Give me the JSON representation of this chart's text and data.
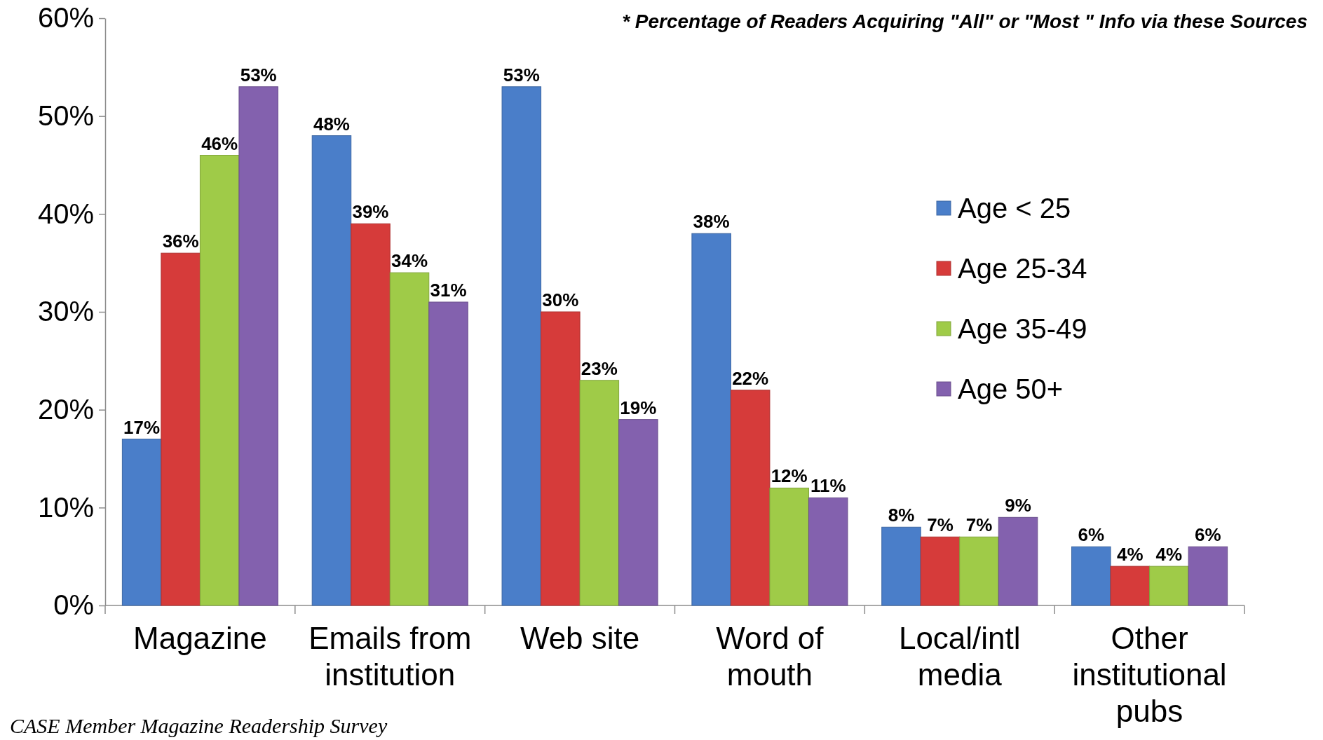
{
  "chart_data": {
    "type": "bar",
    "categories": [
      "Magazine",
      "Emails from institution",
      "Web site",
      "Word of mouth",
      "Local/intl media",
      "Other institutional pubs"
    ],
    "series": [
      {
        "name": "Age < 25",
        "color": "#4a7ec9",
        "values": [
          17,
          48,
          53,
          38,
          8,
          6
        ],
        "value_labels": [
          "17%",
          "48%",
          "53%",
          "38%",
          "8%",
          "6%"
        ]
      },
      {
        "name": "Age 25-34",
        "color": "#d63b3a",
        "values": [
          36,
          39,
          30,
          22,
          7,
          4
        ],
        "value_labels": [
          "36%",
          "39%",
          "30%",
          "22%",
          "7%",
          "4%"
        ]
      },
      {
        "name": "Age 35-49",
        "color": "#9fcb48",
        "values": [
          46,
          34,
          23,
          12,
          7,
          4
        ],
        "value_labels": [
          "46%",
          "34%",
          "23%",
          "12%",
          "7%",
          "4%"
        ]
      },
      {
        "name": "Age 50+",
        "color": "#8361ae",
        "values": [
          53,
          31,
          19,
          11,
          9,
          6
        ],
        "value_labels": [
          "53%",
          "31%",
          "19%",
          "11%",
          "9%",
          "6%"
        ]
      }
    ],
    "ylim": [
      0,
      60
    ],
    "yticks": [
      {
        "value": 0,
        "label": "0%"
      },
      {
        "value": 10,
        "label": "10%"
      },
      {
        "value": 20,
        "label": "20%"
      },
      {
        "value": 30,
        "label": "30%"
      },
      {
        "value": 40,
        "label": "40%"
      },
      {
        "value": 50,
        "label": "50%"
      },
      {
        "value": 60,
        "label": "60%"
      }
    ],
    "legend": "right",
    "annotations": [
      "* Percentage of Readers Acquiring \"All\" or \"Most \" Info via these Sources",
      "CASE Member Magazine Readership Survey"
    ]
  }
}
